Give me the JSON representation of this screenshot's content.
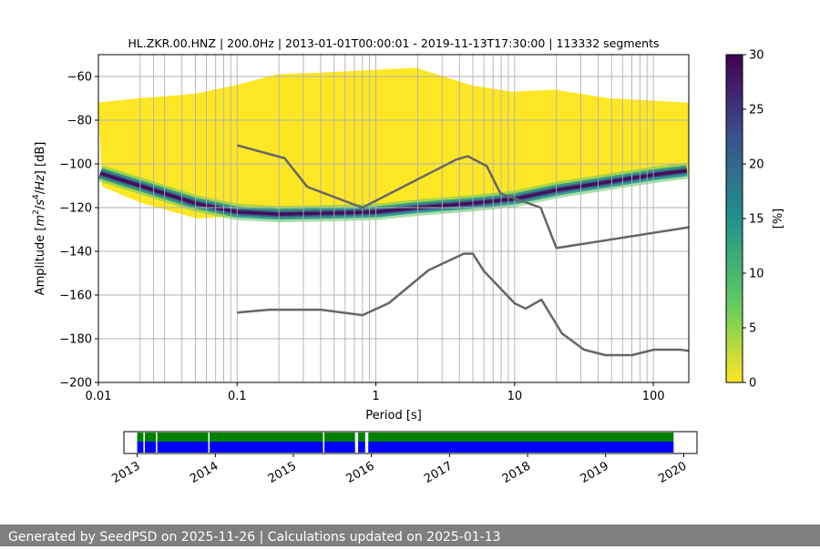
{
  "footer": {
    "text": "Generated by SeedPSD on 2025-11-26 | Calculations updated on 2025-01-13"
  },
  "chart_data": [
    {
      "type": "heatmap",
      "title": "HL.ZKR.00.HNZ | 200.0Hz | 2013-01-01T00:00:01 - 2019-11-13T17:30:00 | 113332 segments",
      "xlabel": "Period [s]",
      "ylabel_parts": [
        "Amplitude [",
        "m",
        "2",
        "/",
        "s",
        "4",
        "/",
        "Hz",
        "] [dB]"
      ],
      "xscale": "log",
      "xlim": [
        0.01,
        180
      ],
      "ylim": [
        -200,
        -50
      ],
      "x_ticks": [
        {
          "value": 0.01,
          "label": "0.01"
        },
        {
          "value": 0.1,
          "label": "0.1"
        },
        {
          "value": 1,
          "label": "1"
        },
        {
          "value": 10,
          "label": "10"
        },
        {
          "value": 100,
          "label": "100"
        }
      ],
      "y_ticks": [
        {
          "value": -60,
          "label": "−60"
        },
        {
          "value": -80,
          "label": "−80"
        },
        {
          "value": -100,
          "label": "−100"
        },
        {
          "value": -120,
          "label": "−120"
        },
        {
          "value": -140,
          "label": "−140"
        },
        {
          "value": -160,
          "label": "−160"
        },
        {
          "value": -180,
          "label": "−180"
        },
        {
          "value": -200,
          "label": "−200"
        }
      ],
      "vertical_gridlines_period": [
        0.02,
        0.025,
        0.03,
        0.04,
        0.05,
        0.06,
        0.07,
        0.08,
        0.09,
        0.1,
        0.2,
        0.3,
        0.4,
        0.5,
        0.6,
        0.7,
        0.8,
        0.9,
        1,
        2,
        3,
        4,
        5,
        6,
        7,
        8,
        9,
        10,
        20,
        30,
        40,
        50,
        60,
        70,
        80,
        90,
        100
      ],
      "envelope": {
        "period": [
          0.01,
          0.02,
          0.05,
          0.1,
          0.2,
          0.5,
          1,
          2,
          5,
          10,
          20,
          50,
          100,
          180
        ],
        "upper_db": [
          -72,
          -70,
          -68,
          -64,
          -59,
          -58,
          -57,
          -56,
          -64,
          -67,
          -66,
          -70,
          -71,
          -72
        ],
        "lower_db": [
          -110,
          -118,
          -125,
          -124,
          -123,
          -123,
          -123,
          -121,
          -119,
          -117,
          -113,
          -109,
          -106,
          -104
        ]
      },
      "mode_curve": {
        "period": [
          0.01,
          0.02,
          0.05,
          0.1,
          0.2,
          0.5,
          1,
          2,
          5,
          10,
          20,
          50,
          100,
          180
        ],
        "db": [
          -104,
          -110,
          -118,
          -122,
          -123,
          -122.5,
          -122,
          -120,
          -118,
          -116,
          -112,
          -108,
          -105,
          -103
        ]
      },
      "nhnm": {
        "period": [
          0.1,
          0.22,
          0.32,
          0.8,
          3.8,
          4.6,
          6.3,
          7.9,
          15.4,
          20,
          180
        ],
        "db": [
          -91.5,
          -97.4,
          -110.5,
          -120,
          -98,
          -96.5,
          -101,
          -113.5,
          -120,
          -138.5,
          -129
        ]
      },
      "nlnm": {
        "period": [
          0.1,
          0.17,
          0.4,
          0.8,
          1.24,
          2.4,
          4.3,
          5,
          6,
          10,
          12,
          15.6,
          21.9,
          31.6,
          45,
          70,
          101,
          154,
          180
        ],
        "db": [
          -168,
          -166.7,
          -166.7,
          -169.2,
          -163.7,
          -148.6,
          -141.1,
          -141.1,
          -149,
          -163.8,
          -166.2,
          -162.1,
          -177.5,
          -185,
          -187.5,
          -187.5,
          -185,
          -185,
          -185.5
        ]
      },
      "colorbar": {
        "label": "[%]",
        "range": [
          0,
          30
        ],
        "ticks": [
          {
            "value": 0,
            "label": "0"
          },
          {
            "value": 5,
            "label": "5"
          },
          {
            "value": 10,
            "label": "10"
          },
          {
            "value": 15,
            "label": "15"
          },
          {
            "value": 20,
            "label": "20"
          },
          {
            "value": 25,
            "label": "25"
          },
          {
            "value": 30,
            "label": "30"
          }
        ],
        "colormap_stops": [
          "#fde725",
          "#5ec962",
          "#21918c",
          "#3b528b",
          "#440154"
        ]
      },
      "colors": {
        "reference_curves": "#666666",
        "grid": "#b0b0b0"
      }
    },
    {
      "type": "timeline",
      "x_ticks": [
        "2013",
        "2014",
        "2015",
        "2016",
        "2017",
        "2018",
        "2019",
        "2020"
      ],
      "xlim": [
        2012.83,
        2020.17
      ],
      "green_intervals": [
        [
          2013.0,
          2015.79
        ],
        [
          2015.83,
          2015.92
        ],
        [
          2015.96,
          2019.87
        ]
      ],
      "blue_intervals": [
        [
          2013.0,
          2015.79
        ],
        [
          2015.83,
          2015.92
        ],
        [
          2015.96,
          2019.87
        ]
      ],
      "gaps": [
        2013.08,
        2013.24,
        2013.91,
        2015.38
      ],
      "colors": {
        "green": "#008000",
        "blue": "#0000ff"
      }
    }
  ]
}
